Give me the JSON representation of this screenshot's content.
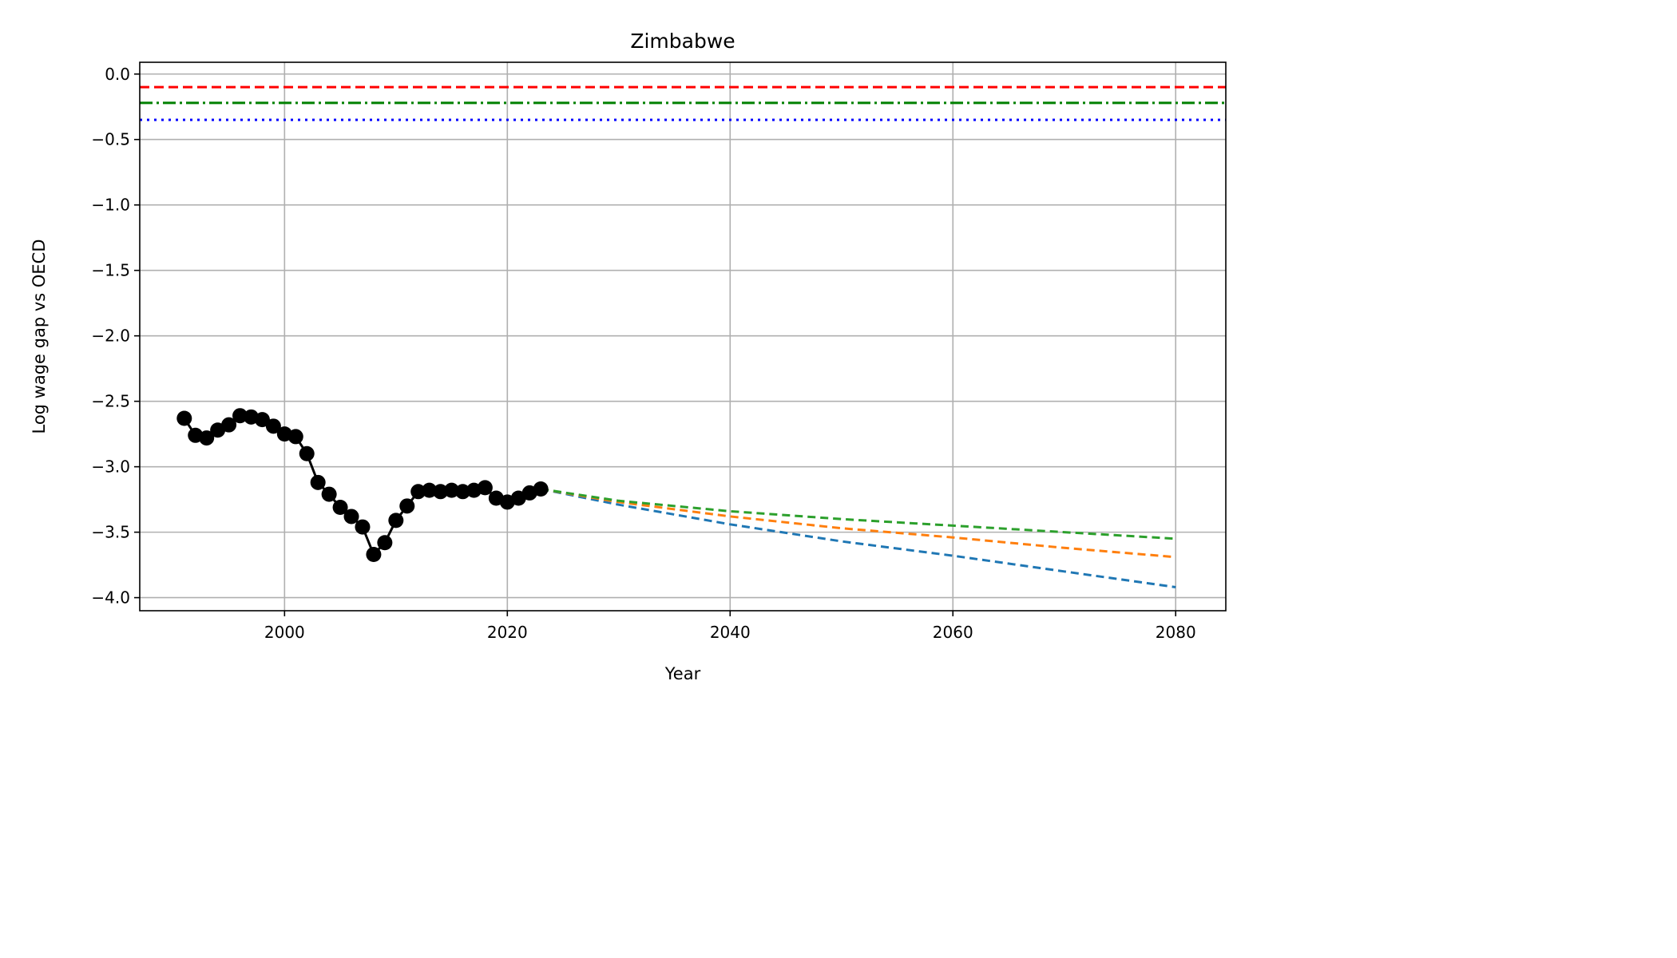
{
  "chart_data": {
    "type": "line",
    "title": "Zimbabwe",
    "xlabel": "Year",
    "ylabel": "Log wage gap vs OECD",
    "xlim": [
      1987,
      2084.5
    ],
    "ylim": [
      -4.1,
      0.09
    ],
    "grid": true,
    "x_ticks": [
      2000,
      2020,
      2040,
      2060,
      2080
    ],
    "x_tick_labels": [
      "2000",
      "2020",
      "2040",
      "2060",
      "2080"
    ],
    "y_ticks": [
      0.0,
      -0.5,
      -1.0,
      -1.5,
      -2.0,
      -2.5,
      -3.0,
      -3.5,
      -4.0
    ],
    "y_tick_labels": [
      "0.0",
      "−0.5",
      "−1.0",
      "−1.5",
      "−2.0",
      "−2.5",
      "−3.0",
      "−3.5",
      "−4.0"
    ],
    "reference_lines": [
      {
        "y": -0.1,
        "color": "#ff0000",
        "style": "dashed"
      },
      {
        "y": -0.22,
        "color": "#008000",
        "style": "dashdot"
      },
      {
        "y": -0.35,
        "color": "#0000ff",
        "style": "dotted"
      }
    ],
    "historical": {
      "color": "#000000",
      "marker": "circle",
      "x": [
        1991,
        1992,
        1993,
        1994,
        1995,
        1996,
        1997,
        1998,
        1999,
        2000,
        2001,
        2002,
        2003,
        2004,
        2005,
        2006,
        2007,
        2008,
        2009,
        2010,
        2011,
        2012,
        2013,
        2014,
        2015,
        2016,
        2017,
        2018,
        2019,
        2020,
        2021,
        2022,
        2023
      ],
      "y": [
        -2.63,
        -2.76,
        -2.78,
        -2.72,
        -2.68,
        -2.61,
        -2.62,
        -2.64,
        -2.69,
        -2.75,
        -2.77,
        -2.9,
        -3.12,
        -3.21,
        -3.31,
        -3.38,
        -3.46,
        -3.67,
        -3.58,
        -3.41,
        -3.3,
        -3.19,
        -3.18,
        -3.19,
        -3.18,
        -3.19,
        -3.18,
        -3.16,
        -3.24,
        -3.27,
        -3.24,
        -3.2,
        -3.17
      ]
    },
    "projections": [
      {
        "color": "#1f77b4",
        "x": [
          2023,
          2030,
          2040,
          2050,
          2060,
          2070,
          2080
        ],
        "y": [
          -3.17,
          -3.29,
          -3.44,
          -3.57,
          -3.68,
          -3.8,
          -3.92
        ]
      },
      {
        "color": "#ff7f0e",
        "x": [
          2023,
          2030,
          2040,
          2050,
          2060,
          2070,
          2080
        ],
        "y": [
          -3.17,
          -3.27,
          -3.38,
          -3.47,
          -3.54,
          -3.62,
          -3.69
        ]
      },
      {
        "color": "#2ca02c",
        "x": [
          2023,
          2030,
          2040,
          2050,
          2060,
          2070,
          2080
        ],
        "y": [
          -3.17,
          -3.26,
          -3.34,
          -3.4,
          -3.45,
          -3.5,
          -3.55
        ]
      }
    ]
  }
}
